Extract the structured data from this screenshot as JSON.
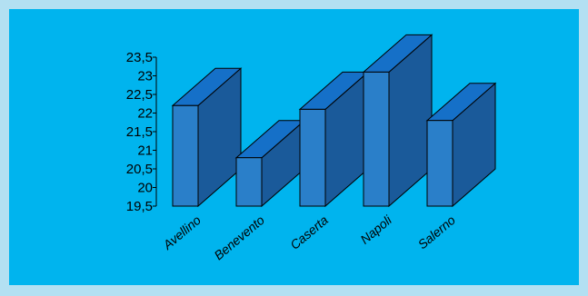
{
  "colors": {
    "background": "#00b4ee",
    "border": "#b3e0f2",
    "bar_front": "#2a7fc9",
    "bar_side": "#1a5a9a",
    "bar_top": "#1570c8",
    "outline": "#000000"
  },
  "chart_data": {
    "type": "bar",
    "style": "3d",
    "title": "",
    "xlabel": "",
    "ylabel": "",
    "categories": [
      "Avellino",
      "Benevento",
      "Caserta",
      "Napoli",
      "Salerno"
    ],
    "values": [
      22.2,
      20.8,
      22.1,
      23.1,
      21.8
    ],
    "ylim": [
      19.5,
      23.5
    ],
    "yticks": [
      "19,5",
      "20",
      "20,5",
      "21",
      "21,5",
      "22",
      "22,5",
      "23",
      "23,5"
    ],
    "grid": false,
    "legend": "none"
  }
}
